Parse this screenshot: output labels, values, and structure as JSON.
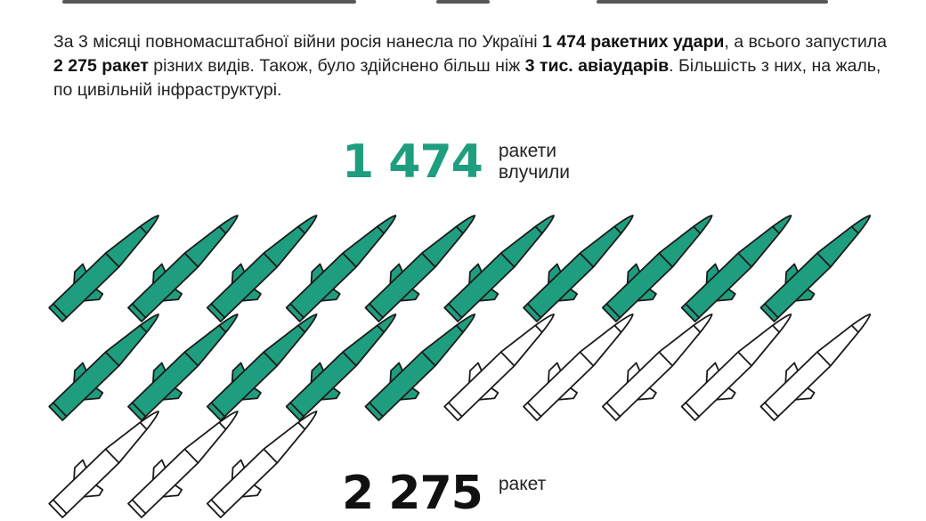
{
  "intro": {
    "t1": "За 3 місяці повномасштабної війни росія нанесла по Україні ",
    "b1": "1 474 ракетних удари",
    "t2": ", а всього запустила ",
    "b2": "2 275 ракет",
    "t3": " різних видів. Також, було здійснено більш ніж ",
    "b3": "3 тис. авіаударів",
    "t4": ". Більшість з них, на жаль, по цивільній інфраструктурі."
  },
  "stats": {
    "hit": {
      "number": "1 474",
      "label_line1": "ракети",
      "label_line2": "влучили"
    },
    "total": {
      "number": "2 275",
      "label_line1": "ракет"
    }
  },
  "pictogram": {
    "icon": "missile-icon",
    "per_row": 10,
    "hit_icons": 15,
    "missed_icons_visible": 8,
    "colors": {
      "hit": "#1f9e7f",
      "missed": "#ffffff",
      "outline": "#1a1a1a"
    }
  }
}
